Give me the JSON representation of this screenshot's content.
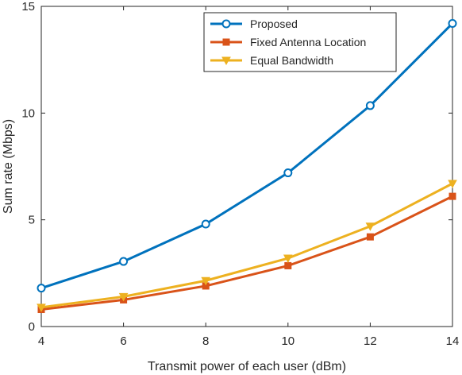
{
  "chart_data": {
    "type": "line",
    "title": "",
    "xlabel": "Transmit power of each user (dBm)",
    "ylabel": "Sum rate (Mbps)",
    "xlim": [
      4,
      14
    ],
    "ylim": [
      0,
      15
    ],
    "xticks": [
      4,
      6,
      8,
      10,
      12,
      14
    ],
    "yticks": [
      0,
      5,
      10,
      15
    ],
    "grid": false,
    "legend_position": "top-right",
    "x": [
      4,
      6,
      8,
      10,
      12,
      14
    ],
    "series": [
      {
        "name": "Proposed",
        "values": [
          1.8,
          3.05,
          4.8,
          7.2,
          10.35,
          14.2
        ],
        "color": "#0072BD",
        "marker": "circle"
      },
      {
        "name": "Fixed Antenna Location",
        "values": [
          0.8,
          1.25,
          1.9,
          2.85,
          4.2,
          6.1
        ],
        "color": "#D95319",
        "marker": "square"
      },
      {
        "name": "Equal Bandwidth",
        "values": [
          0.9,
          1.4,
          2.15,
          3.2,
          4.7,
          6.7
        ],
        "color": "#EDB120",
        "marker": "triangle-down"
      }
    ]
  }
}
